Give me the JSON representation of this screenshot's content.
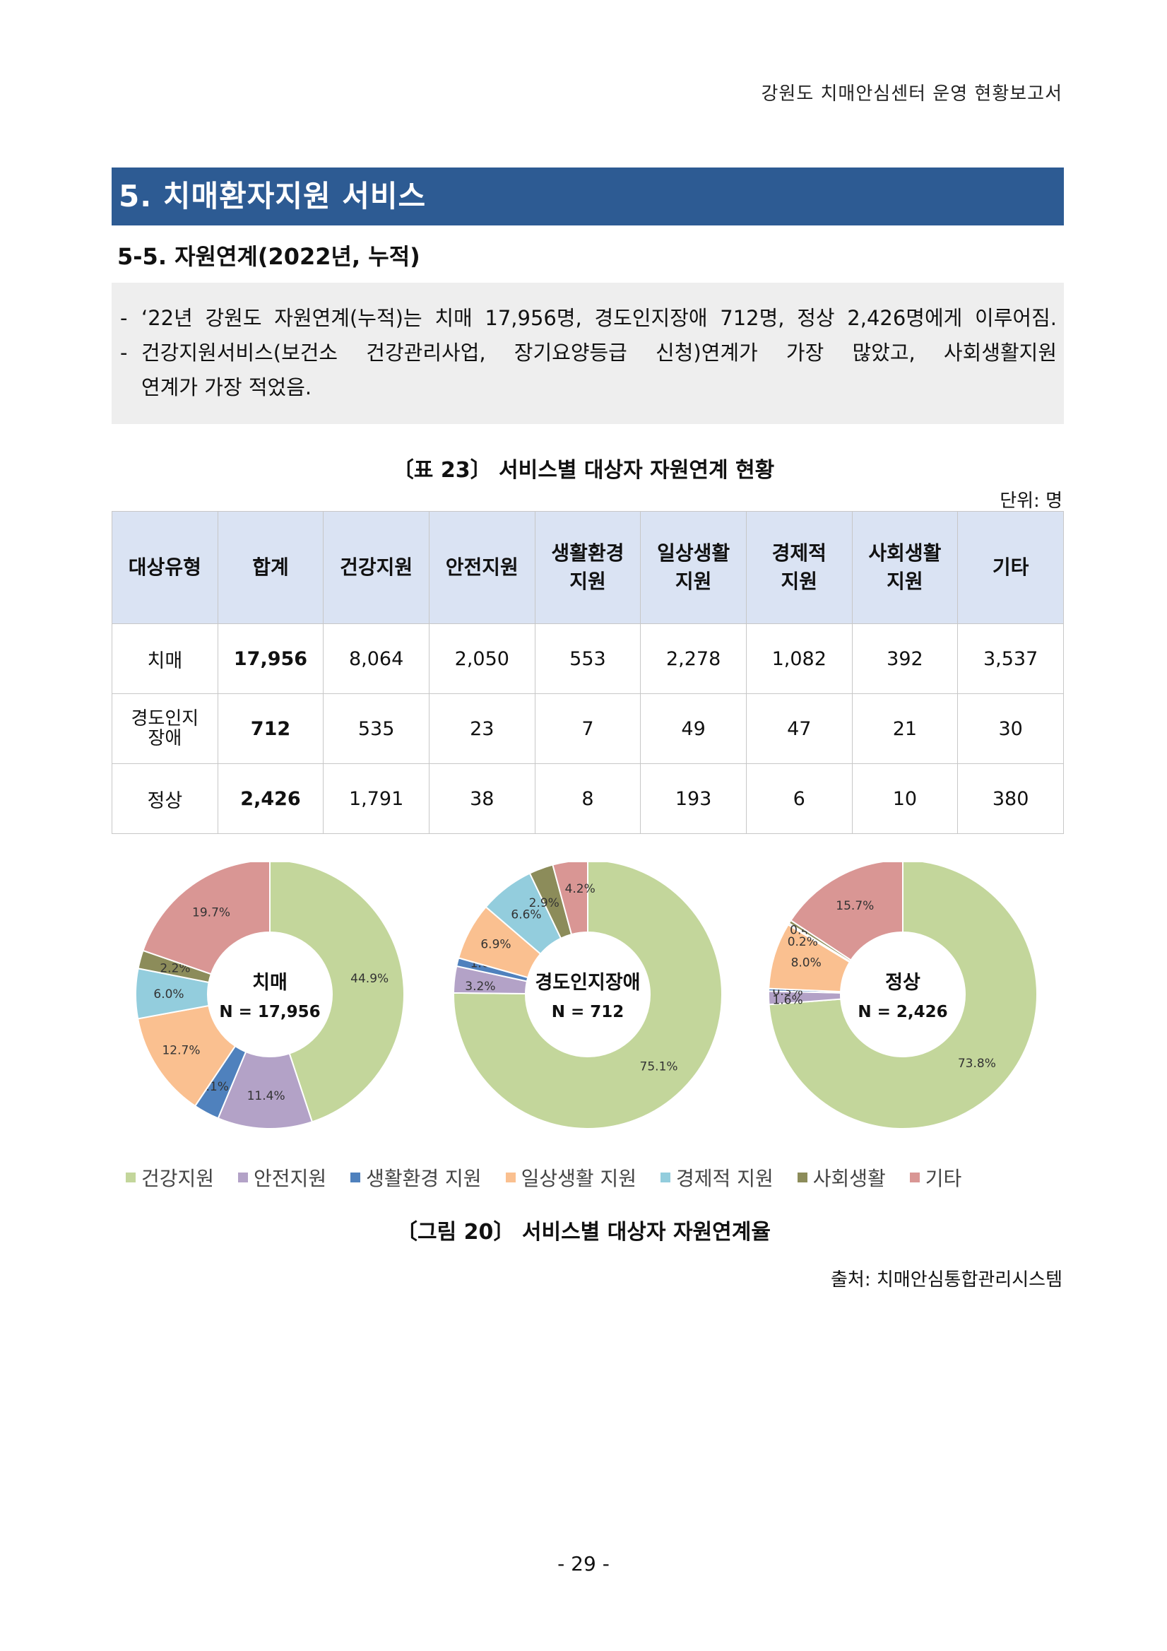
{
  "header": {
    "running_title": "강원도 치매안심센터 운영 현황보고서"
  },
  "section": {
    "title": "5. 치매환자지원 서비스"
  },
  "subsection": {
    "title": "5-5. 자원연계(2022년, 누적)"
  },
  "summary": {
    "dash": "-",
    "bullet1": "‘22년 강원도 자원연계(누적)는 치매 17,956명, 경도인지장애 712명, 정상 2,426명에게 이루어짐.",
    "bullet2_line1": "건강지원서비스(보건소 건강관리사업, 장기요양등급 신청)연계가 가장 많았고, 사회생활지원",
    "bullet2_line2": "연계가 가장 적었음."
  },
  "table": {
    "caption": "〔표 23〕 서비스별 대상자 자원연계 현황",
    "unit": "단위: 명",
    "headers": [
      "대상유형",
      "합계",
      "건강지원",
      "안전지원",
      "생활환경\n지원",
      "일상생활\n지원",
      "경제적\n지원",
      "사회생활\n지원",
      "기타"
    ],
    "rows": [
      [
        "치매",
        "17,956",
        "8,064",
        "2,050",
        "553",
        "2,278",
        "1,082",
        "392",
        "3,537"
      ],
      [
        "경도인지\n장애",
        "712",
        "535",
        "23",
        "7",
        "49",
        "47",
        "21",
        "30"
      ],
      [
        "정상",
        "2,426",
        "1,791",
        "38",
        "8",
        "193",
        "6",
        "10",
        "380"
      ]
    ]
  },
  "chart_data": [
    {
      "type": "pie",
      "center_title": "치매",
      "center_subtitle": "N = 17,956",
      "categories": [
        "건강지원",
        "안전지원",
        "생활환경 지원",
        "일상생활 지원",
        "경제적 지원",
        "사회생활",
        "기타"
      ],
      "values": [
        44.9,
        11.4,
        3.1,
        12.7,
        6.0,
        2.2,
        19.7
      ],
      "labels": [
        "44.9%",
        "11.4%",
        "3.1%",
        "12.7%",
        "6.0%",
        "2.2%",
        "19.7%"
      ]
    },
    {
      "type": "pie",
      "center_title": "경도인지장애",
      "center_subtitle": "N = 712",
      "categories": [
        "건강지원",
        "안전지원",
        "생활환경 지원",
        "일상생활 지원",
        "경제적 지원",
        "사회생활",
        "기타"
      ],
      "values": [
        75.1,
        3.2,
        1.0,
        6.9,
        6.6,
        2.9,
        4.2
      ],
      "labels": [
        "75.1%",
        "3.2%",
        "1.0%",
        "6.9%",
        "6.6%",
        "2.9%",
        "4.2%"
      ]
    },
    {
      "type": "pie",
      "center_title": "정상",
      "center_subtitle": "N = 2,426",
      "categories": [
        "건강지원",
        "안전지원",
        "생활환경 지원",
        "일상생활 지원",
        "경제적 지원",
        "사회생활",
        "기타"
      ],
      "values": [
        73.8,
        1.6,
        0.3,
        8.0,
        0.2,
        0.4,
        15.7
      ],
      "labels": [
        "73.8%",
        "1.6%",
        "0.3%",
        "8.0%",
        "0.2%",
        "0.4%",
        "15.7%"
      ]
    }
  ],
  "legend": {
    "items": [
      "건강지원",
      "안전지원",
      "생활환경 지원",
      "일상생활 지원",
      "경제적 지원",
      "사회생활",
      "기타"
    ],
    "colors": [
      "#c3d69b",
      "#b3a2c7",
      "#4f81bd",
      "#fac090",
      "#93cddd",
      "#8c8c5a",
      "#d99694"
    ]
  },
  "figure": {
    "caption": "〔그림 20〕 서비스별 대상자 자원연계율"
  },
  "source": {
    "text": "출처: 치매안심통합관리시스템"
  },
  "footer": {
    "page_number": "- 29 -"
  }
}
